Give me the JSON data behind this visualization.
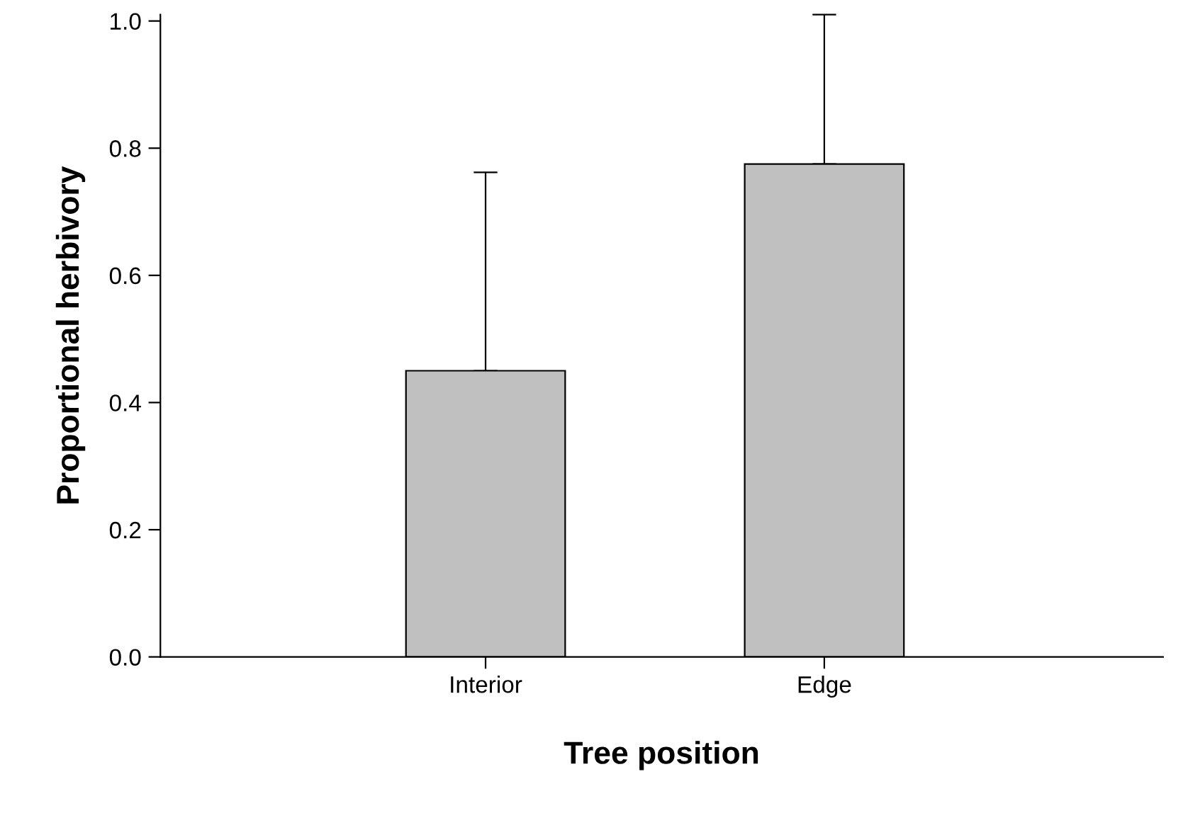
{
  "chart_data": {
    "type": "bar",
    "xlabel": "Tree position",
    "ylabel": "Proportional herbivory",
    "categories": [
      "Interior",
      "Edge"
    ],
    "values": [
      0.45,
      0.775
    ],
    "errors": [
      [
        0.45,
        0.762
      ],
      [
        0.775,
        1.01
      ]
    ],
    "color": "#c0c0c0",
    "ylim": [
      0,
      1.01
    ],
    "yticks": [
      {
        "value": 0,
        "label": "0.0"
      },
      {
        "value": 0.2,
        "label": "0.2"
      },
      {
        "value": 0.4,
        "label": "0.4"
      },
      {
        "value": 0.6,
        "label": "0.6"
      },
      {
        "value": 0.8,
        "label": "0.8"
      },
      {
        "value": 1.0,
        "label": "1.0"
      }
    ],
    "grid": false,
    "legend": false
  }
}
